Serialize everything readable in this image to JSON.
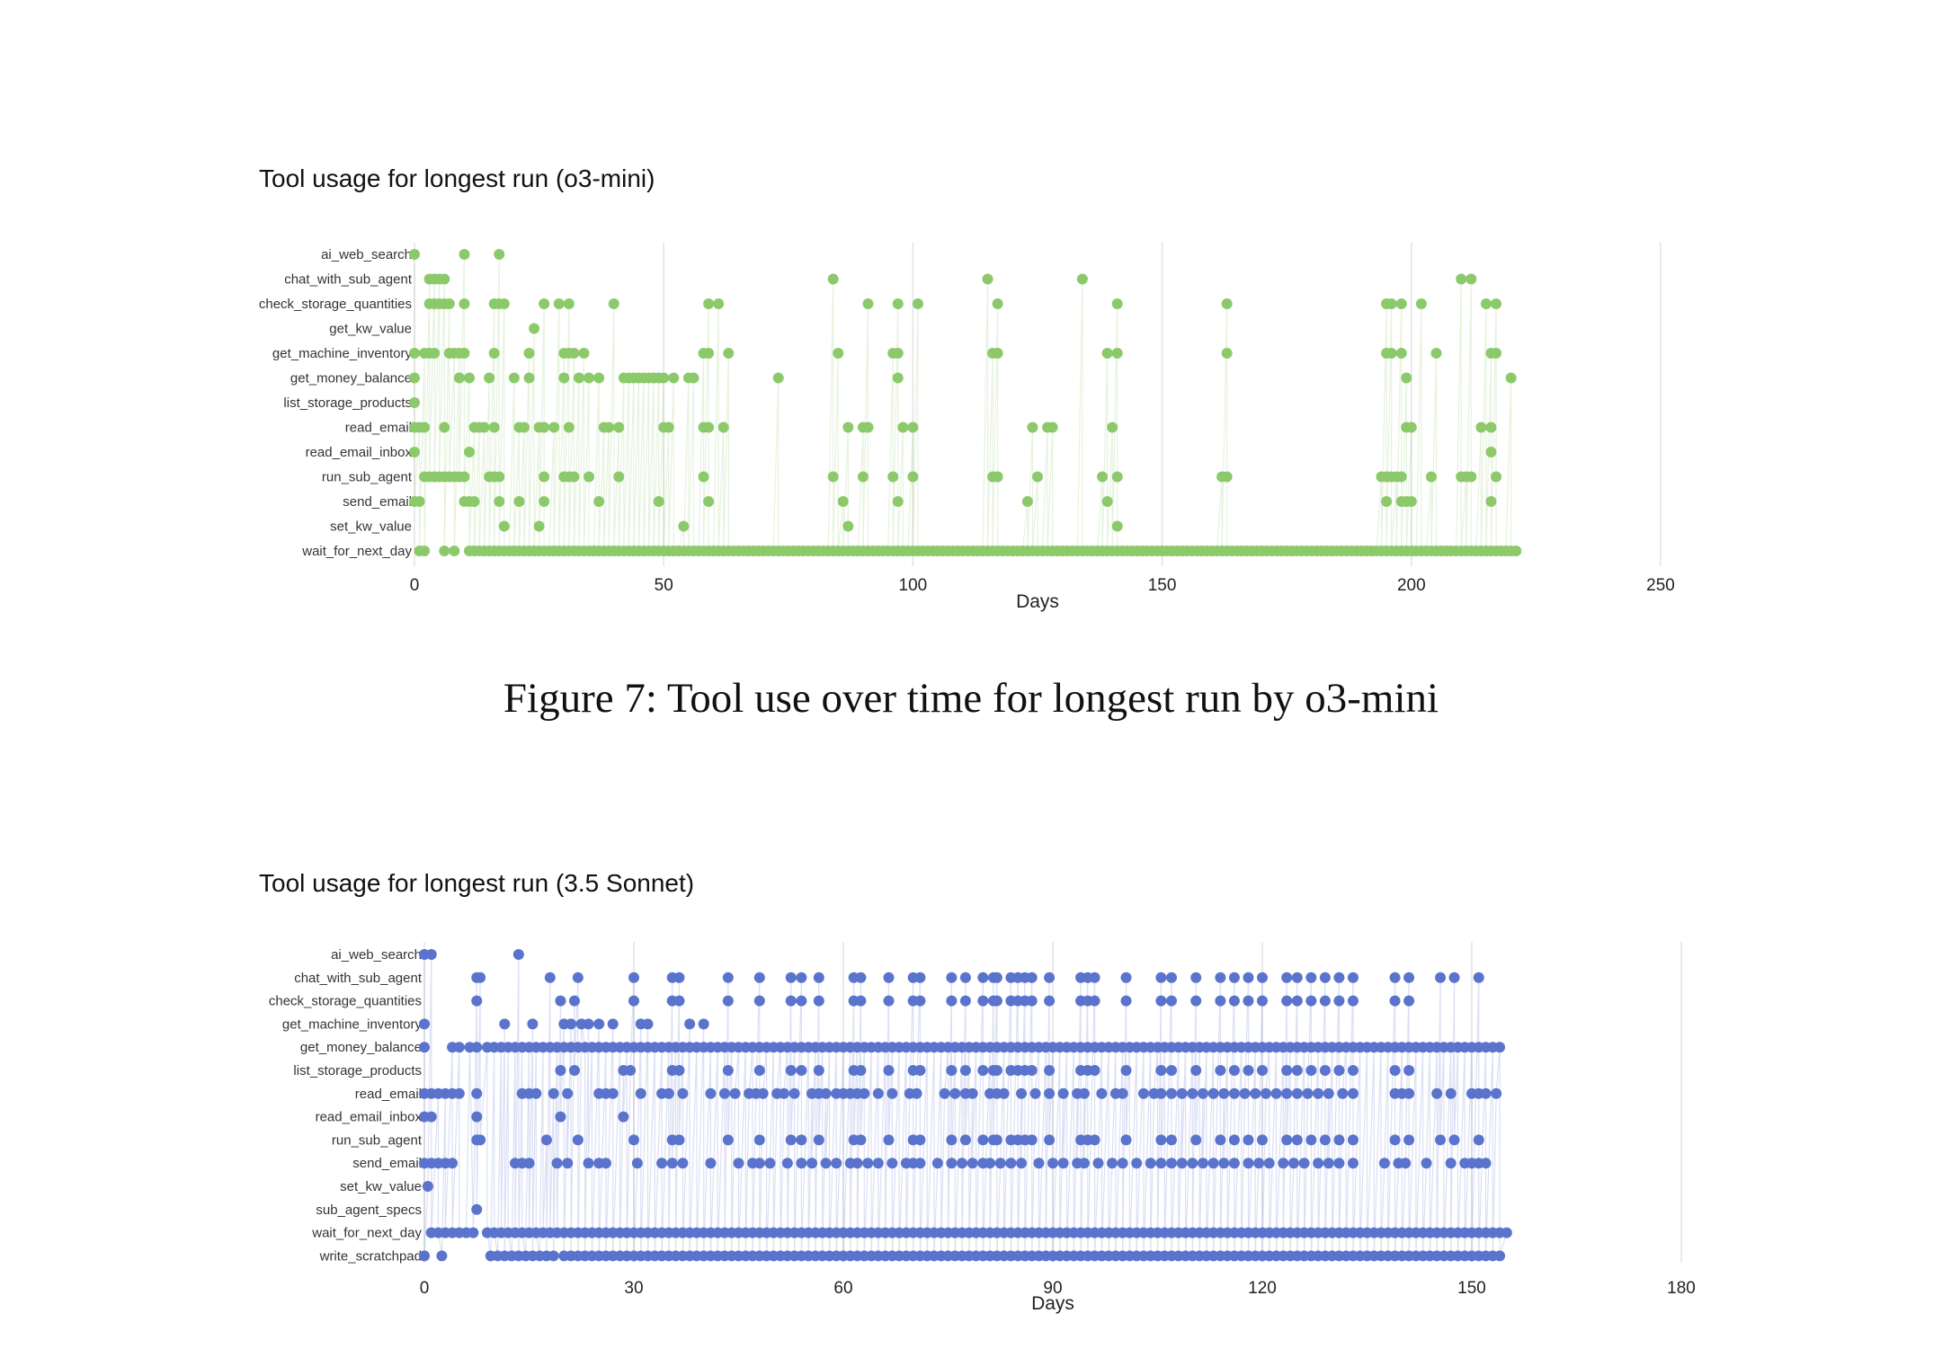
{
  "figure7": {
    "caption": "Figure 7: Tool use over time for longest run by o3-mini"
  },
  "chart_data": [
    {
      "type": "scatter",
      "title": "Tool usage for longest run (o3-mini)",
      "xlabel": "Days",
      "ylabel": "",
      "xlim": [
        0,
        250
      ],
      "xticks": [
        0,
        50,
        100,
        150,
        200,
        250
      ],
      "grid": "vertical",
      "color": "#8cc96b",
      "categories": [
        "ai_web_search",
        "chat_with_sub_agent",
        "check_storage_quantities",
        "get_kw_value",
        "get_machine_inventory",
        "get_money_balance",
        "list_storage_products",
        "read_email",
        "read_email_inbox",
        "run_sub_agent",
        "send_email",
        "set_kw_value",
        "wait_for_next_day"
      ],
      "points": {
        "ai_web_search": [
          0,
          10,
          17
        ],
        "chat_with_sub_agent": [
          3,
          4,
          5,
          6,
          84,
          115,
          134,
          210,
          212
        ],
        "check_storage_quantities": [
          3,
          4,
          5,
          6,
          7,
          10,
          16,
          17,
          18,
          26,
          29,
          31,
          40,
          59,
          61,
          91,
          97,
          101,
          117,
          141,
          163,
          195,
          196,
          198,
          202,
          215,
          217
        ],
        "get_kw_value": [
          24
        ],
        "get_machine_inventory": [
          0,
          2,
          3,
          4,
          7,
          8,
          9,
          10,
          16,
          23,
          30,
          31,
          32,
          34,
          58,
          59,
          63,
          85,
          96,
          97,
          116,
          117,
          139,
          141,
          163,
          195,
          196,
          198,
          205,
          216,
          217
        ],
        "get_money_balance": [
          0,
          9,
          11,
          15,
          20,
          23,
          30,
          33,
          35,
          37,
          42,
          43,
          44,
          45,
          46,
          47,
          48,
          49,
          50,
          52,
          55,
          56,
          73,
          97,
          199,
          220
        ],
        "list_storage_products": [
          0
        ],
        "read_email": [
          0,
          1,
          2,
          6,
          12,
          13,
          14,
          16,
          21,
          22,
          25,
          26,
          28,
          31,
          38,
          39,
          41,
          50,
          51,
          58,
          59,
          62,
          87,
          90,
          91,
          98,
          100,
          124,
          127,
          128,
          140,
          199,
          200,
          214,
          216
        ],
        "read_email_inbox": [
          0,
          11,
          216
        ],
        "run_sub_agent": [
          2,
          3,
          4,
          5,
          6,
          7,
          8,
          9,
          10,
          15,
          16,
          17,
          26,
          30,
          31,
          32,
          35,
          41,
          58,
          84,
          90,
          96,
          100,
          116,
          117,
          125,
          138,
          141,
          162,
          163,
          194,
          195,
          196,
          197,
          198,
          204,
          210,
          211,
          212,
          217
        ],
        "send_email": [
          0,
          1,
          10,
          11,
          12,
          17,
          21,
          26,
          37,
          49,
          59,
          86,
          97,
          123,
          139,
          195,
          198,
          199,
          200,
          216
        ],
        "set_kw_value": [
          18,
          25,
          54,
          87,
          141
        ],
        "wait_for_next_day": [
          1,
          2,
          6,
          8
        ]
      },
      "dense": {
        "wait_for_next_day": [
          [
            11,
            196,
            1
          ],
          [
            197,
            221,
            1
          ]
        ]
      }
    },
    {
      "type": "scatter",
      "title": "Tool usage for longest run (3.5 Sonnet)",
      "xlabel": "Days",
      "ylabel": "",
      "xlim": [
        0,
        180
      ],
      "xticks": [
        0,
        30,
        60,
        90,
        120,
        150,
        180
      ],
      "grid": "vertical",
      "color": "#5a73cc",
      "categories": [
        "ai_web_search",
        "chat_with_sub_agent",
        "check_storage_quantities",
        "get_machine_inventory",
        "get_money_balance",
        "list_storage_products",
        "read_email",
        "read_email_inbox",
        "run_sub_agent",
        "send_email",
        "set_kw_value",
        "sub_agent_specs",
        "wait_for_next_day",
        "write_scratchpad"
      ],
      "points": {
        "ai_web_search": [
          0,
          1,
          13.5
        ],
        "chat_with_sub_agent": [
          7.5,
          8,
          18,
          22,
          30,
          35.5,
          36.5,
          43.5,
          48,
          52.5,
          54,
          56.5,
          61.5,
          62.5,
          66.5,
          70,
          71,
          75.5,
          77.5,
          80,
          81.5,
          82,
          84,
          85,
          86,
          87,
          89.5,
          94,
          95,
          96,
          100.5,
          105.5,
          107,
          110.5,
          114,
          116,
          118,
          120,
          123.5,
          125,
          127,
          129,
          131,
          133,
          139,
          141,
          145.5,
          147.5,
          151
        ],
        "check_storage_quantities": [
          7.5,
          19.5,
          21.5,
          30,
          35.5,
          36.5,
          43.5,
          48,
          52.5,
          54,
          56.5,
          61.5,
          62.5,
          66.5,
          70,
          71,
          75.5,
          77.5,
          80,
          81.5,
          82,
          84,
          85,
          86,
          87,
          89.5,
          94,
          95,
          96,
          100.5,
          105.5,
          107,
          110.5,
          114,
          116,
          118,
          120,
          123.5,
          125,
          127,
          129,
          131,
          133,
          139,
          141
        ],
        "get_machine_inventory": [
          0,
          11.5,
          15.5,
          20,
          21,
          22.5,
          23.5,
          25,
          27,
          31,
          32,
          38,
          40
        ],
        "get_money_balance": [
          0,
          4,
          5,
          6.5,
          7.5
        ],
        "list_storage_products": [
          19.5,
          21.5,
          28.5,
          29.5,
          35.5,
          36.5,
          43.5,
          48,
          52.5,
          54,
          56.5,
          61.5,
          62.5,
          66.5,
          70,
          71,
          75.5,
          77.5,
          80,
          81.5,
          82,
          84,
          85,
          86,
          87,
          89.5,
          94,
          95,
          96,
          100.5,
          105.5,
          107,
          110.5,
          114,
          116,
          118,
          120,
          123.5,
          125,
          127,
          129,
          131,
          133,
          139,
          141
        ],
        "read_email": [
          0,
          1,
          2,
          3,
          4,
          5,
          7.5,
          14,
          15,
          16,
          18.5,
          20.5,
          25,
          26,
          27,
          31,
          34,
          35,
          37,
          41,
          43,
          44.5,
          46.5,
          47.5,
          48.5,
          50.5,
          51.5,
          53,
          55.5,
          56.5,
          57.5,
          59,
          60,
          61,
          62,
          63,
          65,
          67,
          69.5,
          70.5,
          74.5,
          76,
          77.5,
          78.5,
          81,
          82,
          83,
          85.5,
          87.5,
          89.5,
          91.5,
          93.5,
          94.5,
          97,
          99,
          100,
          103,
          104.5,
          105.5,
          107,
          108.5,
          110,
          111.5,
          113,
          114.5,
          116,
          117.5,
          119,
          120.5,
          122,
          123.5,
          125,
          126.5,
          128,
          129.5,
          131.5,
          133,
          139,
          140,
          141,
          145,
          147,
          150,
          151,
          152,
          153.5
        ],
        "read_email_inbox": [
          0,
          1,
          7.5,
          19.5,
          28.5
        ],
        "run_sub_agent": [
          7.5,
          8,
          17.5,
          22,
          30,
          35.5,
          36.5,
          43.5,
          48,
          52.5,
          54,
          56.5,
          61.5,
          62.5,
          66.5,
          70,
          71,
          75.5,
          77.5,
          80,
          81.5,
          82,
          84,
          85,
          86,
          87,
          89.5,
          94,
          95,
          96,
          100.5,
          105.5,
          107,
          110.5,
          114,
          116,
          118,
          120,
          123.5,
          125,
          127,
          129,
          131,
          133,
          139,
          141,
          145.5,
          147.5,
          151
        ],
        "send_email": [
          0,
          1,
          2,
          3,
          4,
          13,
          14,
          15,
          19,
          20.5,
          23.5,
          25,
          26,
          30.5,
          34,
          35.5,
          37,
          41,
          45,
          47,
          48,
          49.5,
          52,
          54,
          55.5,
          57.5,
          59,
          61,
          62,
          63.5,
          65,
          67,
          69,
          70,
          71,
          73.5,
          75.5,
          77,
          78.5,
          80,
          81,
          82.5,
          84,
          85.5,
          88,
          90,
          91.5,
          93.5,
          94.5,
          96.5,
          98.5,
          100,
          102,
          104,
          105.5,
          107,
          108.5,
          110,
          111.5,
          113,
          114.5,
          116,
          118,
          119.5,
          121,
          123,
          124.5,
          126,
          128,
          129.5,
          131,
          133,
          137.5,
          139.5,
          140.5,
          143.5,
          147,
          149,
          150,
          151,
          152
        ],
        "set_kw_value": [
          0.5
        ],
        "sub_agent_specs": [
          7.5
        ],
        "wait_for_next_day": [
          1,
          2,
          3,
          4,
          5,
          6,
          7
        ],
        "write_scratchpad": [
          0,
          2.5,
          9.5,
          10.5,
          11.5,
          12.5,
          13.5,
          14.5,
          15.5,
          16.5,
          17.5,
          18.5
        ]
      },
      "dense": {
        "get_money_balance": [
          [
            9,
            154,
            1
          ]
        ],
        "wait_for_next_day": [
          [
            9,
            155,
            1
          ]
        ],
        "write_scratchpad": [
          [
            20,
            154,
            1
          ]
        ]
      }
    }
  ]
}
